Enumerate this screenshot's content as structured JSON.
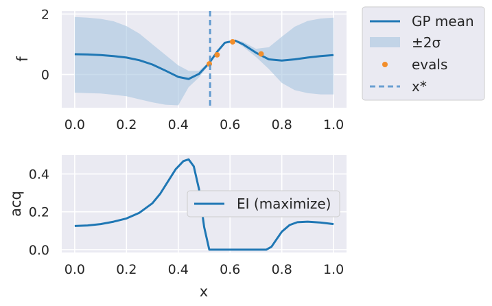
{
  "chart_data": [
    {
      "type": "line",
      "ylabel": "f",
      "xlim": [
        -0.05,
        1.05
      ],
      "ylim": [
        -1.1,
        2.1
      ],
      "xticks": [
        "0.0",
        "0.2",
        "0.4",
        "0.6",
        "0.8",
        "1.0"
      ],
      "yticks": [
        "0",
        "2"
      ],
      "grid": true,
      "legend_position": "outside-top-right",
      "series": [
        {
          "name": "GP mean",
          "kind": "line",
          "x": [
            0.0,
            0.05,
            0.1,
            0.15,
            0.2,
            0.25,
            0.3,
            0.35,
            0.4,
            0.44,
            0.48,
            0.52,
            0.55,
            0.58,
            0.62,
            0.65,
            0.7,
            0.75,
            0.8,
            0.85,
            0.9,
            0.95,
            1.0
          ],
          "y": [
            0.67,
            0.66,
            0.64,
            0.61,
            0.56,
            0.47,
            0.33,
            0.13,
            -0.08,
            -0.15,
            0.02,
            0.38,
            0.75,
            1.05,
            1.12,
            1.0,
            0.72,
            0.5,
            0.46,
            0.5,
            0.56,
            0.61,
            0.64
          ]
        },
        {
          "name": "±2σ",
          "kind": "band",
          "x": [
            0.0,
            0.05,
            0.1,
            0.15,
            0.2,
            0.25,
            0.3,
            0.35,
            0.4,
            0.44,
            0.48,
            0.52,
            0.55,
            0.58,
            0.62,
            0.65,
            0.7,
            0.75,
            0.8,
            0.85,
            0.9,
            0.95,
            1.0
          ],
          "upper": [
            1.9,
            1.88,
            1.84,
            1.76,
            1.6,
            1.35,
            1.0,
            0.65,
            0.3,
            0.12,
            0.12,
            0.42,
            0.78,
            1.08,
            1.14,
            1.08,
            0.85,
            0.9,
            1.25,
            1.58,
            1.77,
            1.85,
            1.88
          ],
          "lower": [
            -0.6,
            -0.62,
            -0.63,
            -0.67,
            -0.72,
            -0.82,
            -0.92,
            -1.0,
            -1.02,
            -0.42,
            -0.1,
            0.34,
            0.72,
            1.02,
            1.1,
            0.92,
            0.58,
            0.18,
            -0.28,
            -0.52,
            -0.62,
            -0.66,
            -0.66
          ]
        },
        {
          "name": "evals",
          "kind": "scatter",
          "x": [
            0.52,
            0.55,
            0.61,
            0.72
          ],
          "y": [
            0.35,
            0.65,
            1.08,
            0.68
          ]
        },
        {
          "name": "x*",
          "kind": "vline",
          "x": 0.523
        }
      ]
    },
    {
      "type": "line",
      "xlabel": "x",
      "ylabel": "acq",
      "xlim": [
        -0.05,
        1.05
      ],
      "ylim": [
        -0.015,
        0.5
      ],
      "xticks": [
        "0.0",
        "0.2",
        "0.4",
        "0.6",
        "0.8",
        "1.0"
      ],
      "yticks": [
        "0.0",
        "0.2",
        "0.4"
      ],
      "grid": true,
      "legend_position": "center-right",
      "series": [
        {
          "name": "EI (maximize)",
          "x": [
            0.0,
            0.05,
            0.1,
            0.15,
            0.2,
            0.25,
            0.3,
            0.33,
            0.36,
            0.39,
            0.42,
            0.44,
            0.46,
            0.48,
            0.5,
            0.52,
            0.55,
            0.6,
            0.65,
            0.7,
            0.74,
            0.76,
            0.78,
            0.8,
            0.83,
            0.86,
            0.9,
            0.95,
            1.0
          ],
          "y": [
            0.125,
            0.128,
            0.135,
            0.148,
            0.165,
            0.195,
            0.245,
            0.295,
            0.36,
            0.425,
            0.468,
            0.477,
            0.44,
            0.32,
            0.12,
            0.0,
            0.0,
            0.0,
            0.0,
            0.0,
            0.0,
            0.015,
            0.055,
            0.095,
            0.13,
            0.145,
            0.148,
            0.143,
            0.135
          ]
        }
      ]
    }
  ],
  "colors": {
    "mean": "#1f77b4",
    "band": "#a6c4e0",
    "evals": "#f28e2b",
    "xstar": "#4c8ec9",
    "axes_bg": "#eaeaf2",
    "grid": "#ffffff"
  }
}
